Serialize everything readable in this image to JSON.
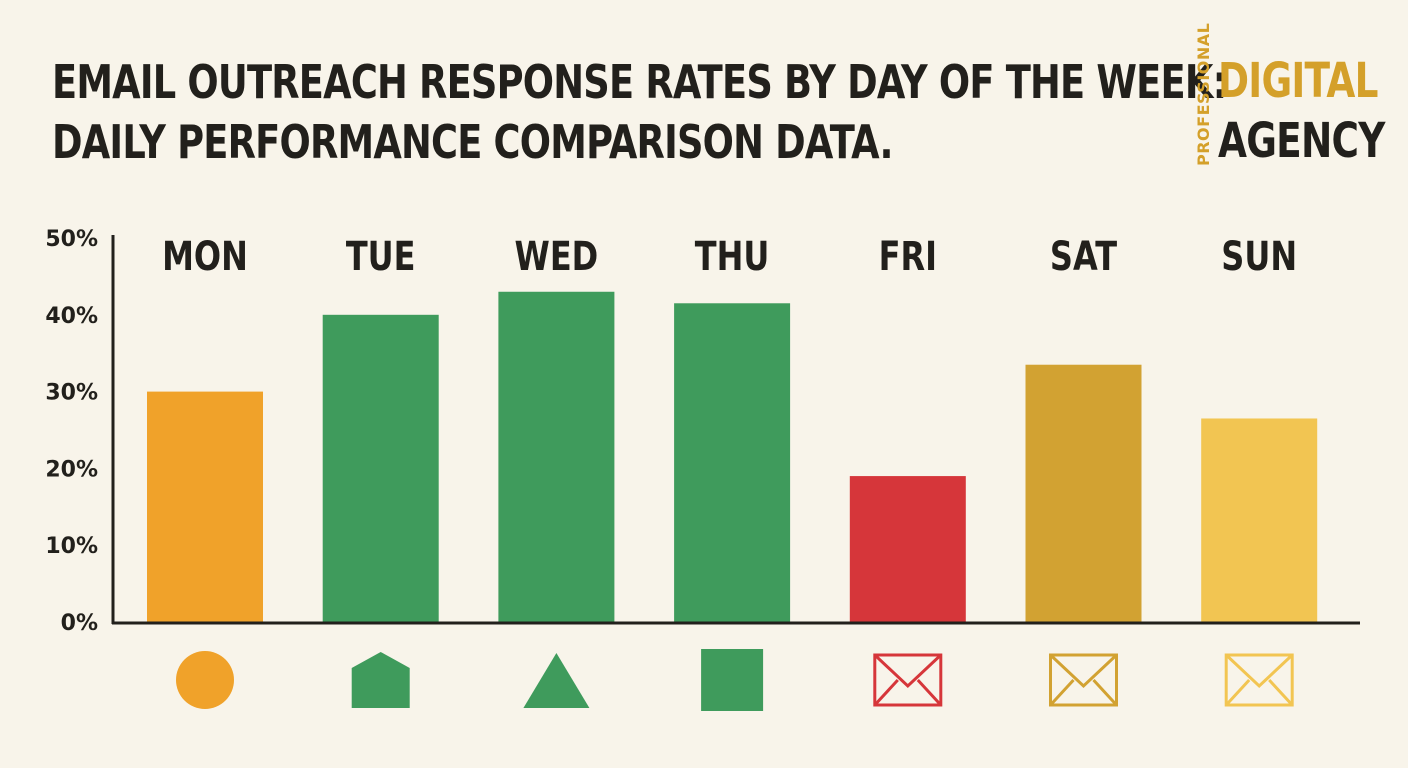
{
  "title_lines": [
    "EMAIL OUTREACH RESPONSE RATES BY DAY OF THE WEEK:",
    "DAILY PERFORMANCE COMPARISON DATA."
  ],
  "logo": {
    "small": "PROFESSIONAL",
    "line1": "DIGITAL",
    "line2": "AGENCY"
  },
  "colors": {
    "background": "#f8f4ea",
    "text": "#22201c",
    "orange": "#f0a22a",
    "green": "#3f9b5c",
    "red": "#d6363a",
    "gold": "#d2a232",
    "yellow": "#f2c552"
  },
  "chart_data": {
    "type": "bar",
    "categories": [
      "MON",
      "TUE",
      "WED",
      "THU",
      "FRI",
      "SAT",
      "SUN"
    ],
    "values": [
      30,
      40,
      43,
      41.5,
      19,
      33.5,
      26.5
    ],
    "unit": "%",
    "ylim": [
      0,
      50
    ],
    "yticks": [
      "0%",
      "10%",
      "20%",
      "30%",
      "40%",
      "50%"
    ],
    "grid": false,
    "category_labels_position": "top",
    "bar_colors": [
      "#f0a22a",
      "#3f9b5c",
      "#3f9b5c",
      "#3f9b5c",
      "#d6363a",
      "#d2a232",
      "#f2c552"
    ],
    "icons": [
      "circle-icon",
      "pentagon-icon",
      "triangle-icon",
      "square-icon",
      "envelope-icon",
      "envelope-icon",
      "envelope-icon"
    ]
  }
}
